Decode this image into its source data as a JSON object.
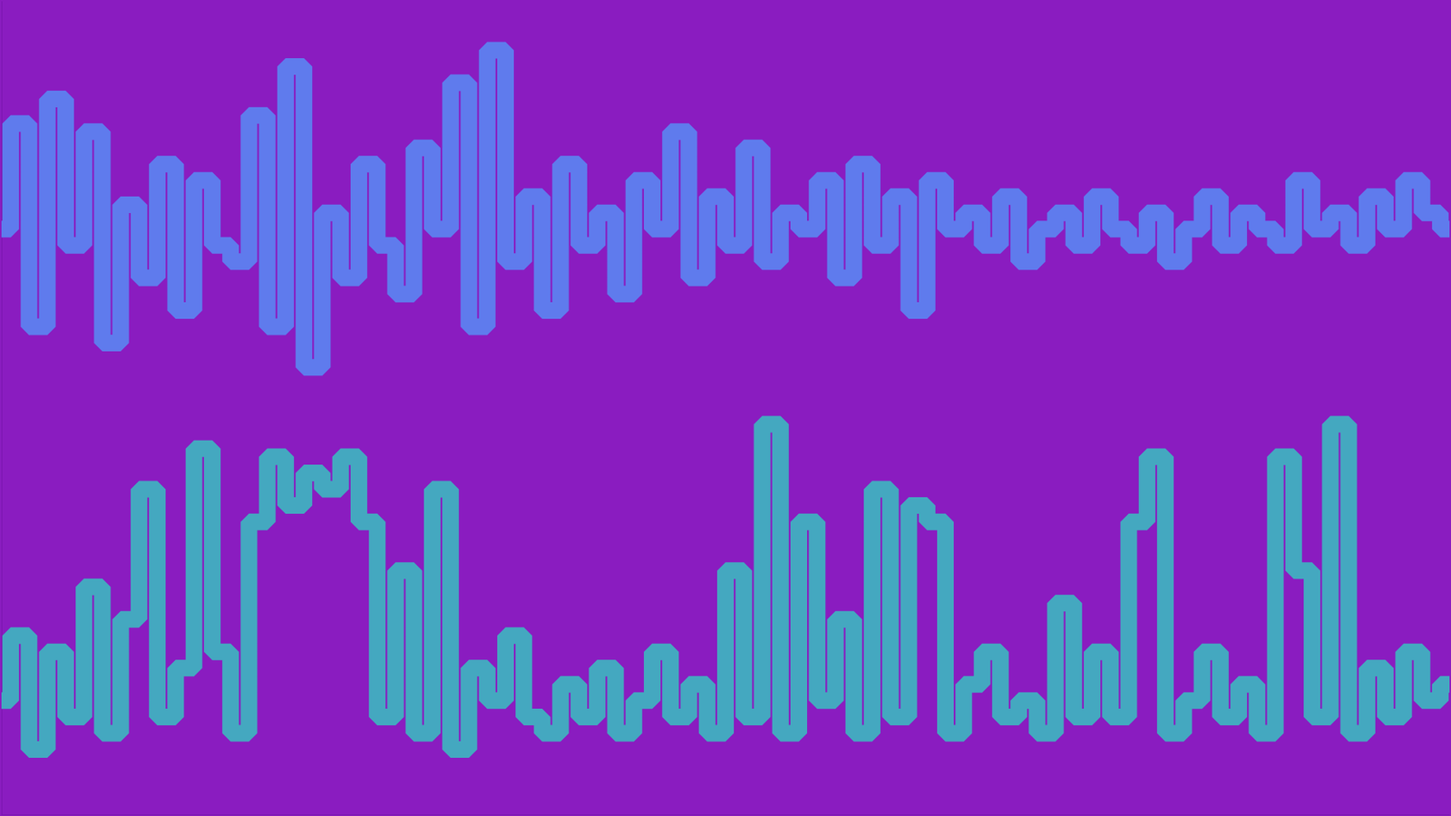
{
  "chart_data": {
    "type": "line",
    "tick_labels": false,
    "grid": false,
    "xlim": [
      0,
      79
    ],
    "ylim": [
      0,
      100
    ],
    "x": [
      0,
      1,
      2,
      3,
      4,
      5,
      6,
      7,
      8,
      9,
      10,
      11,
      12,
      13,
      14,
      15,
      16,
      17,
      18,
      19,
      20,
      21,
      22,
      23,
      24,
      25,
      26,
      27,
      28,
      29,
      30,
      31,
      32,
      33,
      34,
      35,
      36,
      37,
      38,
      39,
      40,
      41,
      42,
      43,
      44,
      45,
      46,
      47,
      48,
      49,
      50,
      51,
      52,
      53,
      54,
      55,
      56,
      57,
      58,
      59,
      60,
      61,
      62,
      63,
      64,
      65,
      66,
      67,
      68,
      69,
      70,
      71,
      72,
      73,
      74,
      75,
      76,
      77,
      78,
      79
    ],
    "series": [
      {
        "color": "#5a86f2",
        "values": [
          72,
          85,
          60,
          88,
          70,
          84,
          58,
          75,
          66,
          80,
          62,
          78,
          70,
          68,
          86,
          60,
          92,
          55,
          74,
          66,
          80,
          70,
          64,
          82,
          72,
          90,
          60,
          94,
          68,
          76,
          62,
          80,
          70,
          74,
          64,
          78,
          72,
          84,
          66,
          76,
          70,
          82,
          68,
          74,
          72,
          78,
          66,
          80,
          70,
          76,
          62,
          78,
          72,
          74,
          70,
          76,
          68,
          72,
          74,
          70,
          76,
          72,
          70,
          74,
          68,
          72,
          76,
          70,
          74,
          72,
          70,
          78,
          72,
          74,
          70,
          76,
          72,
          78,
          74,
          72
        ]
      },
      {
        "color": "#3cb8c0",
        "values": [
          14,
          22,
          8,
          20,
          12,
          28,
          10,
          24,
          40,
          12,
          18,
          45,
          20,
          10,
          36,
          44,
          38,
          42,
          40,
          44,
          36,
          12,
          30,
          10,
          40,
          8,
          18,
          14,
          22,
          12,
          10,
          16,
          12,
          18,
          10,
          14,
          20,
          12,
          16,
          10,
          30,
          12,
          48,
          10,
          36,
          14,
          24,
          10,
          40,
          12,
          38,
          36,
          10,
          16,
          20,
          12,
          14,
          10,
          26,
          12,
          20,
          12,
          36,
          44,
          10,
          14,
          20,
          12,
          16,
          10,
          44,
          30,
          12,
          48,
          10,
          18,
          12,
          20,
          14,
          16
        ]
      }
    ]
  }
}
